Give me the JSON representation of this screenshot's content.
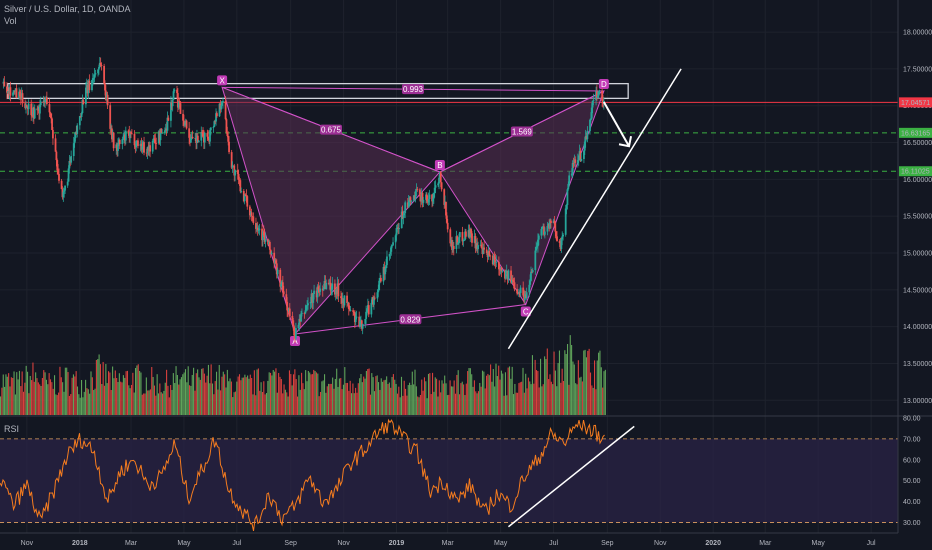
{
  "header": {
    "symbol": "Silver / U.S. Dollar, 1D, OANDA",
    "volume_label": "Vol",
    "rsi_label": "RSI"
  },
  "colors": {
    "background": "#131722",
    "up_candle": "#26a69a",
    "down_candle": "#ef5350",
    "volume_up": "#5fa35a",
    "volume_down": "#d8413d",
    "pattern_line": "#d152c8",
    "pattern_fill": "#5a2d52",
    "rsi_line": "#f57c1f",
    "rsi_band": "#2a2346",
    "green_level": "#3bb143",
    "red_level": "#f23645",
    "trendline": "#ffffff"
  },
  "chart_data": [
    {
      "type": "candlestick",
      "title": "Silver / U.S. Dollar, 1D, OANDA",
      "x_axis": {
        "tick_labels": [
          "Nov",
          "2018",
          "Mar",
          "May",
          "Jul",
          "Sep",
          "Nov",
          "2019",
          "Mar",
          "May",
          "Jul",
          "Sep",
          "Nov",
          "2020",
          "Mar",
          "May",
          "Jul"
        ],
        "range": [
          "2017-10-01",
          "2020-08-01"
        ]
      },
      "y_axis": {
        "tick_labels": [
          "18.00000",
          "17.50000",
          "17.00000",
          "16.50000",
          "16.00000",
          "15.50000",
          "15.00000",
          "14.50000",
          "14.00000",
          "13.50000",
          "13.00000"
        ],
        "range": [
          12.8,
          18.3
        ],
        "price_tags": [
          {
            "label": "17.04571",
            "value": 17.04571,
            "color": "#f23645"
          },
          {
            "label": "16.63165",
            "value": 16.63165,
            "color": "#3bb143"
          },
          {
            "label": "16.11025",
            "value": 16.11025,
            "color": "#3bb143"
          }
        ]
      },
      "price_path": [
        [
          "2017-10-05",
          17.3
        ],
        [
          "2017-10-25",
          17.1
        ],
        [
          "2017-11-10",
          16.9
        ],
        [
          "2017-11-25",
          17.1
        ],
        [
          "2017-12-12",
          15.7
        ],
        [
          "2018-01-05",
          17.1
        ],
        [
          "2018-01-25",
          17.6
        ],
        [
          "2018-02-10",
          16.4
        ],
        [
          "2018-02-25",
          16.6
        ],
        [
          "2018-03-20",
          16.4
        ],
        [
          "2018-04-10",
          16.7
        ],
        [
          "2018-04-20",
          17.2
        ],
        [
          "2018-05-10",
          16.5
        ],
        [
          "2018-05-30",
          16.6
        ],
        [
          "2018-06-14",
          17.1
        ],
        [
          "2018-06-25",
          16.2
        ],
        [
          "2018-07-15",
          15.6
        ],
        [
          "2018-08-10",
          15.0
        ],
        [
          "2018-08-25",
          14.4
        ],
        [
          "2018-09-06",
          13.9
        ],
        [
          "2018-09-20",
          14.3
        ],
        [
          "2018-10-10",
          14.6
        ],
        [
          "2018-10-25",
          14.5
        ],
        [
          "2018-11-10",
          14.2
        ],
        [
          "2018-11-20",
          14.0
        ],
        [
          "2018-12-10",
          14.5
        ],
        [
          "2018-12-25",
          15.0
        ],
        [
          "2019-01-10",
          15.6
        ],
        [
          "2019-01-25",
          15.8
        ],
        [
          "2019-02-10",
          15.7
        ],
        [
          "2019-02-20",
          16.1
        ],
        [
          "2019-03-05",
          15.1
        ],
        [
          "2019-03-25",
          15.3
        ],
        [
          "2019-04-10",
          15.0
        ],
        [
          "2019-04-25",
          14.9
        ],
        [
          "2019-05-15",
          14.6
        ],
        [
          "2019-05-30",
          14.4
        ],
        [
          "2019-06-15",
          15.3
        ],
        [
          "2019-06-30",
          15.4
        ],
        [
          "2019-07-10",
          15.1
        ],
        [
          "2019-07-20",
          16.1
        ],
        [
          "2019-08-05",
          16.4
        ],
        [
          "2019-08-15",
          17.0
        ],
        [
          "2019-08-22",
          17.2
        ],
        [
          "2019-08-28",
          17.0
        ]
      ],
      "harmonic_pattern": {
        "points": [
          {
            "label": "X",
            "date": "2018-06-14",
            "value": 17.25
          },
          {
            "label": "A",
            "date": "2018-09-06",
            "value": 13.9
          },
          {
            "label": "B",
            "date": "2019-02-20",
            "value": 16.1
          },
          {
            "label": "C",
            "date": "2019-05-30",
            "value": 14.3
          },
          {
            "label": "D",
            "date": "2019-08-28",
            "value": 17.2
          }
        ],
        "ratios": [
          {
            "label": "0.675",
            "between": "XB"
          },
          {
            "label": "1.569",
            "between": "BD"
          },
          {
            "label": "0.829",
            "between": "AC"
          },
          {
            "label": "0.993",
            "between": "XD"
          }
        ]
      },
      "resistance_zone": {
        "from": "2017-10-10",
        "to": "2019-09-25",
        "low": 17.1,
        "high": 17.3
      },
      "horizontal_levels": [
        {
          "value": 17.04571,
          "style": "solid",
          "color": "#f23645"
        },
        {
          "value": 16.63165,
          "style": "dashed",
          "color": "#3bb143"
        },
        {
          "value": 16.11025,
          "style": "dashed",
          "color": "#3bb143"
        }
      ],
      "trendline": {
        "start": [
          "2019-05-10",
          13.7
        ],
        "end": [
          "2019-11-25",
          17.5
        ]
      },
      "arrow": {
        "start": [
          "2019-08-28",
          17.05
        ],
        "end": [
          "2019-09-26",
          16.45
        ]
      }
    },
    {
      "type": "bar",
      "title": "Vol",
      "series": [
        {
          "values": [
            0.55,
            0.5,
            0.62,
            0.48,
            0.57,
            0.5,
            0.68,
            0.52,
            0.6,
            0.55,
            0.49,
            0.58,
            0.53,
            0.62,
            0.5,
            0.47,
            0.55,
            0.6,
            0.51,
            0.56,
            0.48,
            0.58,
            0.54,
            0.5,
            0.46,
            0.52,
            0.49,
            0.45,
            0.5,
            0.58,
            0.62,
            0.55,
            0.6,
            0.82,
            0.7,
            0.95,
            0.78,
            0.72
          ]
        }
      ],
      "ylim": [
        0,
        1
      ]
    },
    {
      "type": "line",
      "title": "RSI",
      "y_axis": {
        "tick_labels": [
          "80.00",
          "70.00",
          "60.00",
          "50.00",
          "40.00",
          "30.00"
        ],
        "range": [
          25,
          80
        ]
      },
      "bands": [
        70,
        30
      ],
      "series": [
        {
          "values": [
            52,
            38,
            48,
            30,
            45,
            62,
            70,
            64,
            40,
            55,
            60,
            48,
            52,
            68,
            42,
            55,
            70,
            46,
            36,
            28,
            44,
            32,
            38,
            52,
            40,
            45,
            58,
            64,
            72,
            78,
            70,
            64,
            45,
            50,
            40,
            48,
            34,
            44,
            38,
            52,
            60,
            72,
            68,
            78,
            74,
            70
          ]
        }
      ],
      "trendline": {
        "start": [
          "2019-05-10",
          28
        ],
        "end": [
          "2019-10-02",
          76
        ]
      }
    }
  ]
}
